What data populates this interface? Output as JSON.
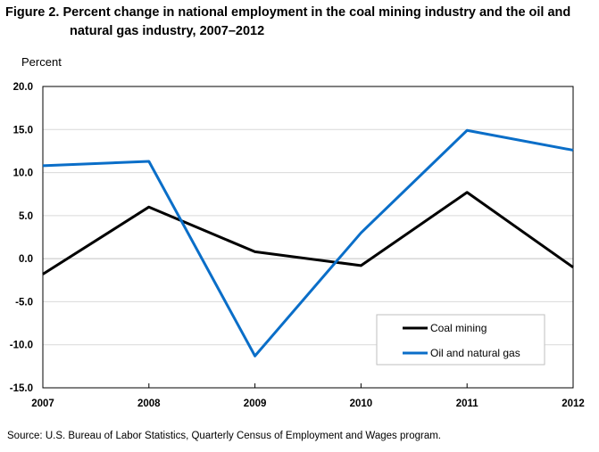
{
  "title_line1": "Figure 2. Percent change in national employment in the coal mining industry and the oil and",
  "title_line2": "natural gas industry, 2007–2012",
  "source": "Source:  U.S. Bureau of Labor Statistics,  Quarterly Census of Employment  and Wages program.",
  "chart_data": {
    "type": "line",
    "title": "Figure 2. Percent change in national employment in the coal mining industry and the oil and natural gas industry, 2007–2012",
    "ylabel": "Percent",
    "xlabel": "",
    "x": [
      "2007",
      "2008",
      "2009",
      "2010",
      "2011",
      "2012"
    ],
    "ylim": [
      -15,
      20
    ],
    "yticks": [
      "20.0",
      "15.0",
      "10.0",
      "5.0",
      "0.0",
      "-5.0",
      "-10.0",
      "-15.0"
    ],
    "yticks_values": [
      20,
      15,
      10,
      5,
      0,
      -5,
      -10,
      -15
    ],
    "grid": true,
    "legend_placement": "bottom-right",
    "series": [
      {
        "name": "Coal mining",
        "color": "#000000",
        "values": [
          -1.8,
          6.0,
          0.8,
          -0.8,
          7.7,
          -1.0
        ]
      },
      {
        "name": "Oil and natural gas",
        "color": "#0a6ec8",
        "values": [
          10.8,
          11.3,
          -11.3,
          3.0,
          14.9,
          12.6
        ]
      }
    ]
  }
}
